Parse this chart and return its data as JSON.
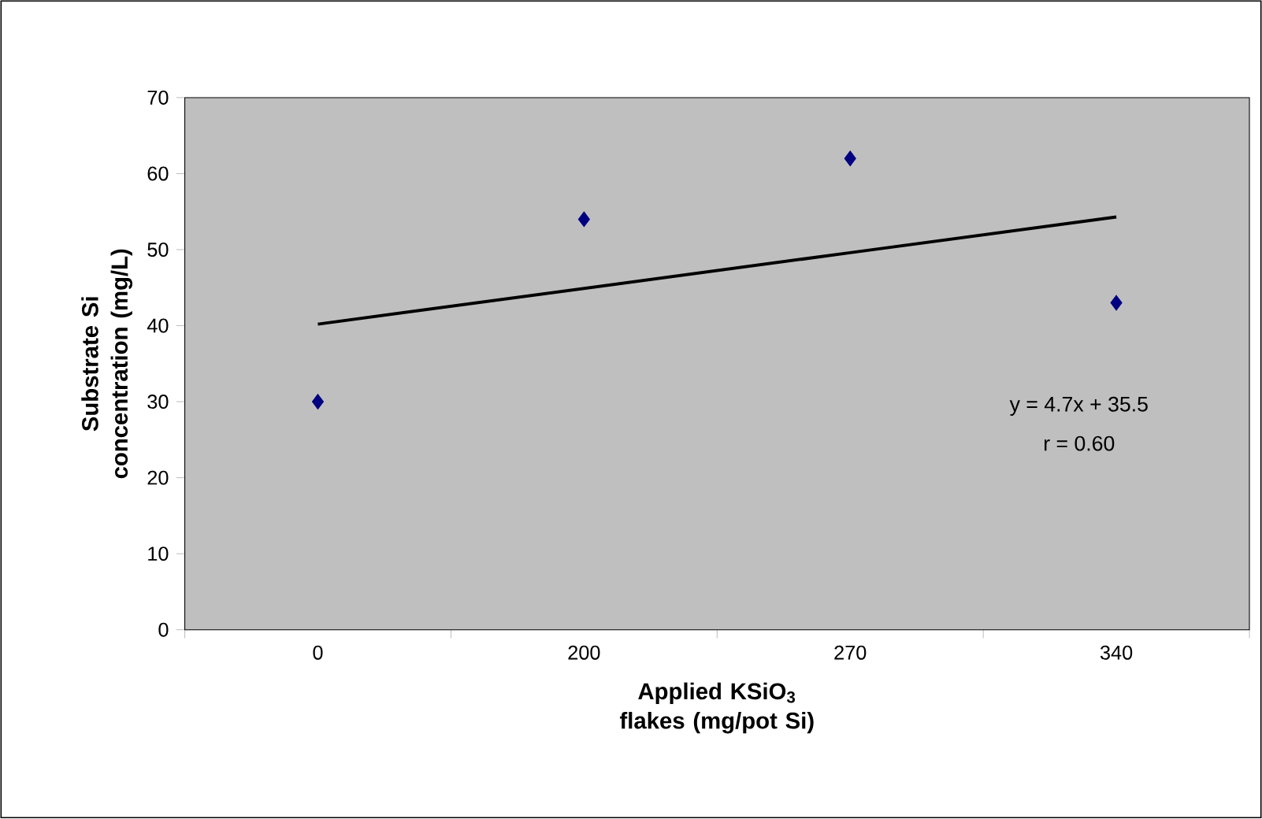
{
  "chart_data": {
    "type": "scatter",
    "xlabel": "Applied KSiO$_{3}$ flakes (mg/pot Si)",
    "ylabel": "Substrate Si concentration (mg/L)",
    "categories": [
      "0",
      "200",
      "270",
      "340"
    ],
    "series": [
      {
        "color": "#000080",
        "marker": "diamond",
        "values": [
          30,
          54,
          62,
          43
        ]
      },
      {
        "type": "line",
        "color": "#000000",
        "marker": "none",
        "line_style": "solid",
        "values": [
          40.2,
          44.9,
          49.6,
          54.3
        ]
      }
    ],
    "ylim": [
      0,
      70
    ],
    "yticks": [
      0,
      10,
      20,
      30,
      40,
      50,
      60,
      70
    ],
    "annotations": [
      "y = 4.7x + 35.5",
      "r = 0.60"
    ]
  }
}
